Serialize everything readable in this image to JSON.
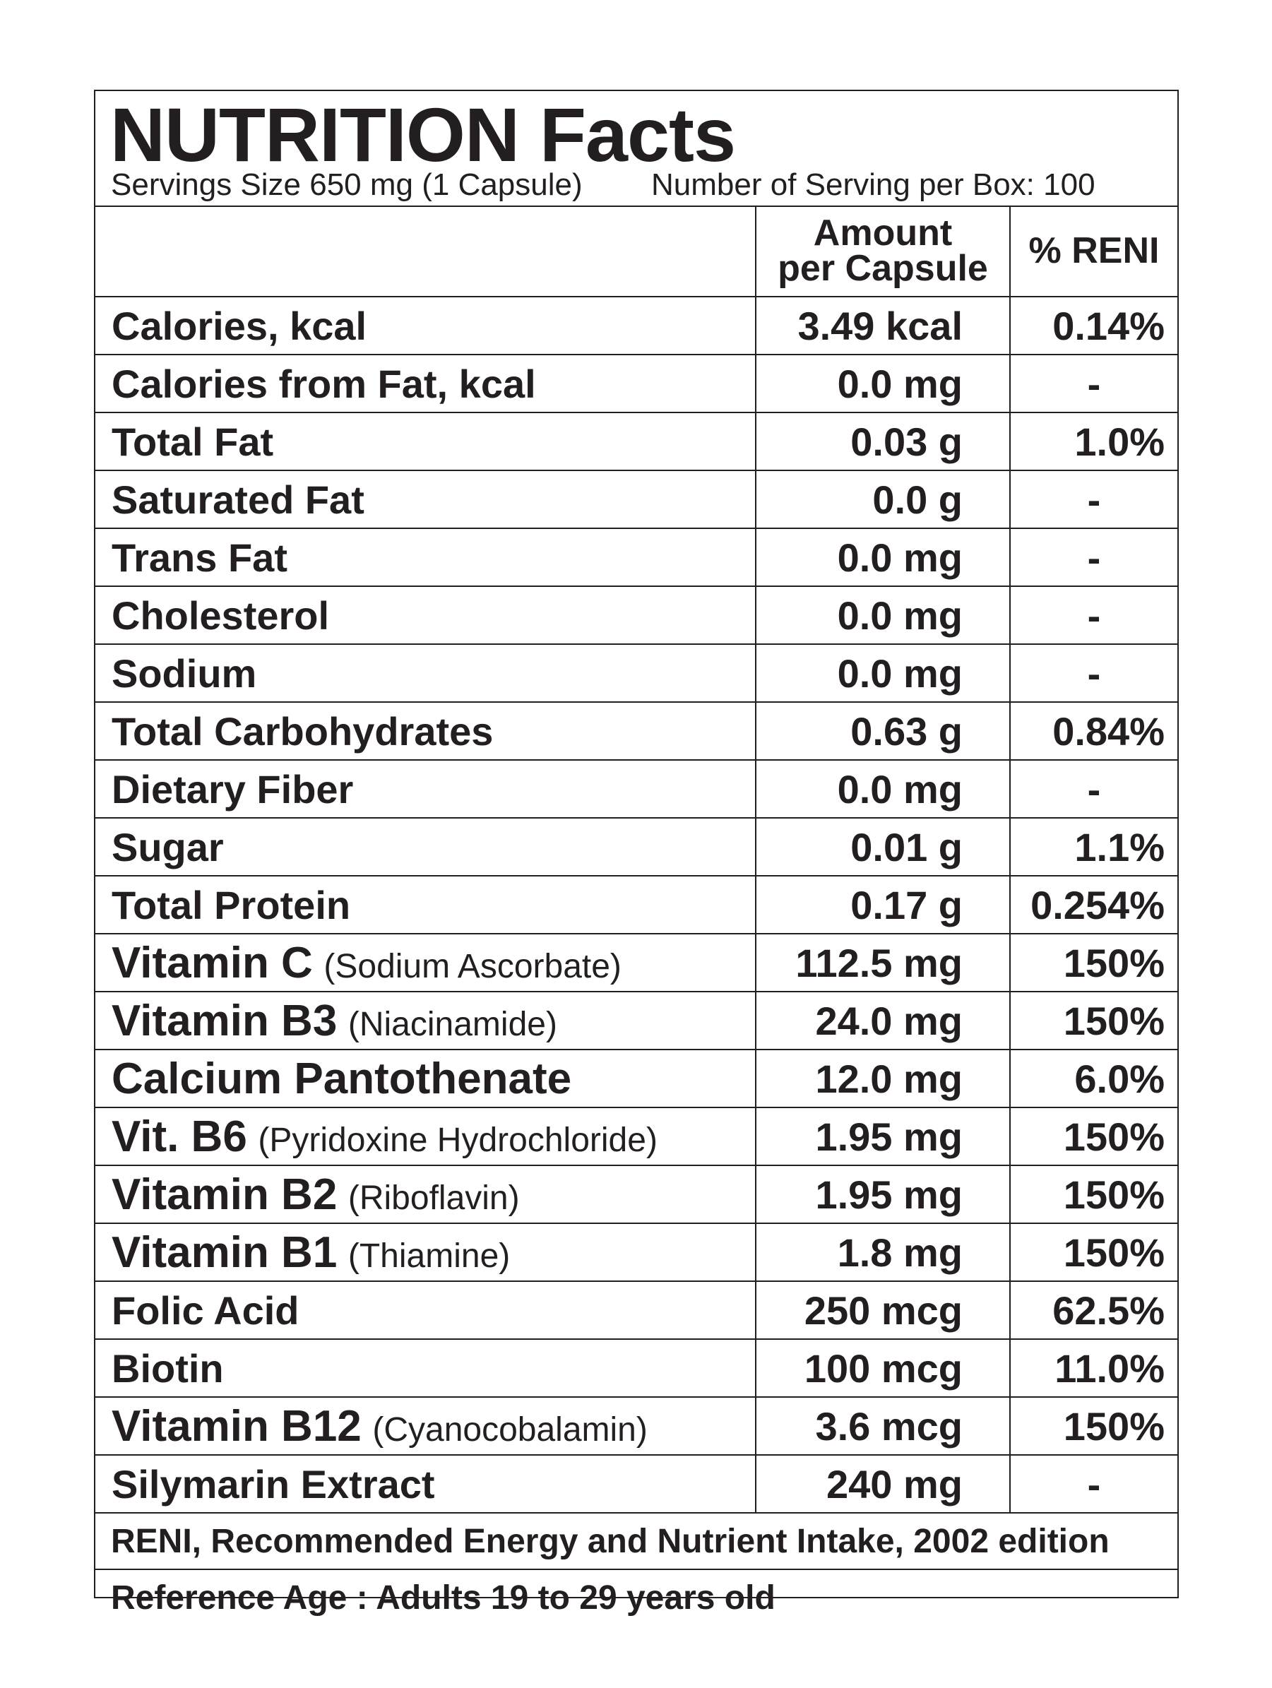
{
  "header": {
    "title": "NUTRITION Facts",
    "serving_size": "Servings Size 650 mg (1 Capsule)",
    "servings_per_box": "Number of Serving per Box: 100"
  },
  "table": {
    "columns": {
      "amount_line1": "Amount",
      "amount_line2": "per Capsule",
      "reni": "% RENI"
    },
    "rows": [
      {
        "name": "Calories, kcal",
        "sub": "",
        "amount": "3.49 kcal",
        "reni": "0.14%"
      },
      {
        "name": "Calories from Fat, kcal",
        "sub": "",
        "amount": "0.0 mg",
        "reni": "-"
      },
      {
        "name": "Total Fat",
        "sub": "",
        "amount": "0.03 g",
        "reni": "1.0%"
      },
      {
        "name": "Saturated Fat",
        "sub": "",
        "amount": "0.0 g",
        "reni": "-"
      },
      {
        "name": "Trans Fat",
        "sub": "",
        "amount": "0.0 mg",
        "reni": "-"
      },
      {
        "name": "Cholesterol",
        "sub": "",
        "amount": "0.0 mg",
        "reni": "-"
      },
      {
        "name": "Sodium",
        "sub": "",
        "amount": "0.0 mg",
        "reni": "-"
      },
      {
        "name": "Total Carbohydrates",
        "sub": "",
        "amount": "0.63 g",
        "reni": "0.84%"
      },
      {
        "name": "Dietary Fiber",
        "sub": "",
        "amount": "0.0 mg",
        "reni": "-"
      },
      {
        "name": "Sugar",
        "sub": "",
        "amount": "0.01 g",
        "reni": "1.1%"
      },
      {
        "name": "Total Protein",
        "sub": "",
        "amount": "0.17 g",
        "reni": "0.254%"
      },
      {
        "name": "Vitamin C",
        "sub": "(Sodium Ascorbate)",
        "amount": "112.5 mg",
        "reni": "150%"
      },
      {
        "name": "Vitamin B3",
        "sub": "(Niacinamide)",
        "amount": "24.0 mg",
        "reni": "150%"
      },
      {
        "name": "Calcium Pantothenate",
        "sub": "",
        "amount": "12.0 mg",
        "reni": "6.0%"
      },
      {
        "name": "Vit. B6",
        "sub": "(Pyridoxine Hydrochloride)",
        "amount": "1.95 mg",
        "reni": "150%"
      },
      {
        "name": "Vitamin B2",
        "sub": "(Riboflavin)",
        "amount": "1.95 mg",
        "reni": "150%"
      },
      {
        "name": "Vitamin B1",
        "sub": "(Thiamine)",
        "amount": "1.8 mg",
        "reni": "150%"
      },
      {
        "name": "Folic Acid",
        "sub": "",
        "amount": "250 mcg",
        "reni": "62.5%"
      },
      {
        "name": "Biotin",
        "sub": "",
        "amount": "100 mcg",
        "reni": "11.0%"
      },
      {
        "name": "Vitamin B12",
        "sub": "(Cyanocobalamin)",
        "amount": "3.6 mcg",
        "reni": "150%"
      },
      {
        "name": "Silymarin Extract",
        "sub": "",
        "amount": "240 mg",
        "reni": "-"
      }
    ]
  },
  "footer": {
    "reni_note": "RENI, Recommended Energy and Nutrient Intake, 2002 edition",
    "reference_age": "Reference Age : Adults 19 to 29 years old"
  }
}
